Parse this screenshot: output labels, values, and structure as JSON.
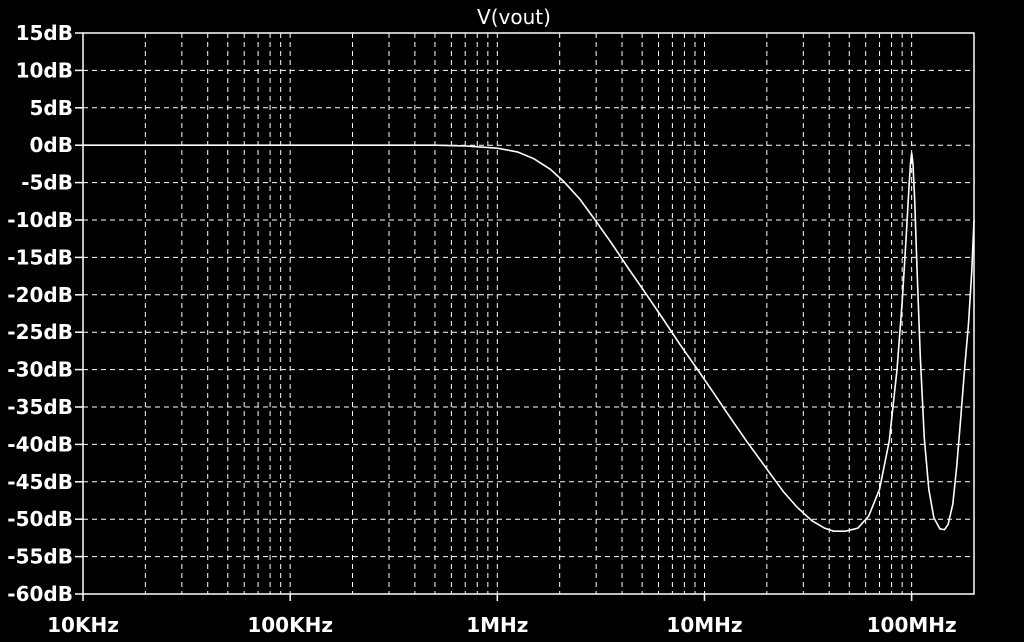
{
  "chart_data": {
    "type": "line",
    "title": "V(vout)",
    "x_scale": "log",
    "xlim_hz": [
      10000,
      200000000
    ],
    "ylim_db": [
      -60,
      15
    ],
    "grid": true,
    "x_ticks": [
      {
        "value": 10000,
        "label": "10KHz"
      },
      {
        "value": 100000,
        "label": "100KHz"
      },
      {
        "value": 1000000,
        "label": "1MHz"
      },
      {
        "value": 10000000,
        "label": "10MHz"
      },
      {
        "value": 100000000,
        "label": "100MHz"
      }
    ],
    "y_ticks": [
      {
        "value": 15,
        "label": "15dB"
      },
      {
        "value": 10,
        "label": "10dB"
      },
      {
        "value": 5,
        "label": "5dB"
      },
      {
        "value": 0,
        "label": "0dB"
      },
      {
        "value": -5,
        "label": "-5dB"
      },
      {
        "value": -10,
        "label": "-10dB"
      },
      {
        "value": -15,
        "label": "-15dB"
      },
      {
        "value": -20,
        "label": "-20dB"
      },
      {
        "value": -25,
        "label": "-25dB"
      },
      {
        "value": -30,
        "label": "-30dB"
      },
      {
        "value": -35,
        "label": "-35dB"
      },
      {
        "value": -40,
        "label": "-40dB"
      },
      {
        "value": -45,
        "label": "-45dB"
      },
      {
        "value": -50,
        "label": "-50dB"
      },
      {
        "value": -55,
        "label": "-55dB"
      },
      {
        "value": -60,
        "label": "-60dB"
      }
    ],
    "series": [
      {
        "color": "#ffffff",
        "points": [
          [
            10000,
            0
          ],
          [
            100000,
            0
          ],
          [
            500000,
            0
          ],
          [
            700000,
            -0.1
          ],
          [
            1000000,
            -0.4
          ],
          [
            1250000,
            -0.9
          ],
          [
            1500000,
            -1.8
          ],
          [
            1800000,
            -3.2
          ],
          [
            2100000,
            -4.9
          ],
          [
            2500000,
            -7.2
          ],
          [
            3000000,
            -10.2
          ],
          [
            3600000,
            -13.3
          ],
          [
            4300000,
            -16.5
          ],
          [
            5200000,
            -19.8
          ],
          [
            6300000,
            -23.2
          ],
          [
            7600000,
            -26.6
          ],
          [
            9000000,
            -29.5
          ],
          [
            11000000,
            -33.0
          ],
          [
            13000000,
            -36.0
          ],
          [
            16000000,
            -39.6
          ],
          [
            20000000,
            -43.3
          ],
          [
            24000000,
            -46.3
          ],
          [
            28000000,
            -48.4
          ],
          [
            33000000,
            -50.2
          ],
          [
            38000000,
            -51.2
          ],
          [
            42000000,
            -51.6
          ],
          [
            48000000,
            -51.6
          ],
          [
            55000000,
            -51.2
          ],
          [
            62000000,
            -49.6
          ],
          [
            70000000,
            -46.0
          ],
          [
            78000000,
            -39.5
          ],
          [
            85000000,
            -30.0
          ],
          [
            90000000,
            -21.0
          ],
          [
            94000000,
            -12.5
          ],
          [
            97000000,
            -5.8
          ],
          [
            98700000,
            -2.5
          ],
          [
            100000000,
            -1.0
          ],
          [
            101500000,
            -2.5
          ],
          [
            103500000,
            -7.5
          ],
          [
            106000000,
            -16.0
          ],
          [
            110000000,
            -28.0
          ],
          [
            115000000,
            -39.0
          ],
          [
            121000000,
            -46.0
          ],
          [
            128000000,
            -49.8
          ],
          [
            137000000,
            -51.3
          ],
          [
            144000000,
            -51.4
          ],
          [
            150000000,
            -50.7
          ],
          [
            158000000,
            -48.0
          ],
          [
            165000000,
            -43.0
          ],
          [
            172000000,
            -37.0
          ],
          [
            180000000,
            -30.0
          ],
          [
            188000000,
            -24.0
          ],
          [
            195000000,
            -17.0
          ],
          [
            200000000,
            -10.0
          ]
        ]
      }
    ]
  }
}
